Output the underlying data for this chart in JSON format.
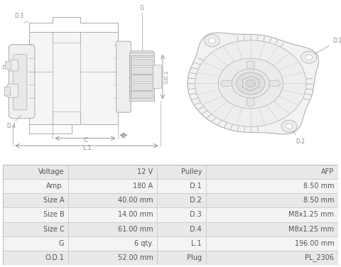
{
  "table_data": [
    [
      "Voltage",
      "12 V",
      "Pulley",
      "AFP"
    ],
    [
      "Amp.",
      "180 A",
      "D.1",
      "8.50 mm"
    ],
    [
      "Size A",
      "40.00 mm",
      "D.2",
      "8.50 mm"
    ],
    [
      "Size B",
      "14.00 mm",
      "D.3",
      "M8x1.25 mm"
    ],
    [
      "Size C",
      "61.00 mm",
      "D.4",
      "M8x1.25 mm"
    ],
    [
      "G",
      "6 qty.",
      "L.1",
      "196.00 mm"
    ],
    [
      "O.D.1",
      "52.00 mm",
      "Plug",
      "PL_2306"
    ]
  ],
  "row_colors": [
    "#e8e8e8",
    "#f4f4f4"
  ],
  "line_color": "#cccccc",
  "text_color": "#555555",
  "bg_color": "#ffffff",
  "border_color": "#bbbbbb",
  "lc": "#aaaaaa",
  "dl_color": "#888888"
}
